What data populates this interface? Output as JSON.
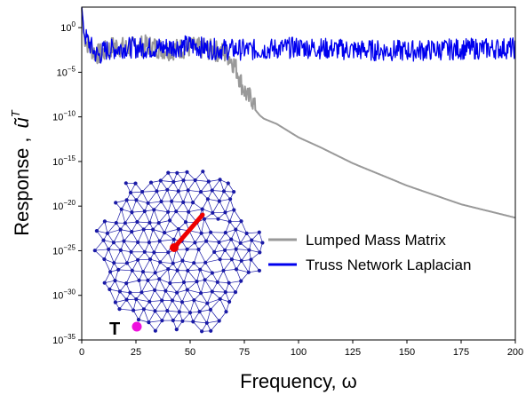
{
  "chart_data": {
    "type": "line",
    "xlabel": "Frequency, ω",
    "ylabel_text": "Response ,",
    "ylabel_symbol": "ũ",
    "ylabel_superscript": "T",
    "xlim": [
      0,
      200
    ],
    "ylim_log10": [
      -35,
      2.3
    ],
    "y_scale": "log",
    "grid": false,
    "x_ticks": [
      0,
      25,
      50,
      75,
      100,
      125,
      150,
      175,
      200
    ],
    "y_ticks": [
      {
        "exp": 0,
        "label": "10",
        "sup": "0"
      },
      {
        "exp": -5,
        "label": "10",
        "sup": "−5"
      },
      {
        "exp": -10,
        "label": "10",
        "sup": "−10"
      },
      {
        "exp": -15,
        "label": "10",
        "sup": "−15"
      },
      {
        "exp": -20,
        "label": "10",
        "sup": "−20"
      },
      {
        "exp": -25,
        "label": "10",
        "sup": "−25"
      },
      {
        "exp": -30,
        "label": "10",
        "sup": "−30"
      },
      {
        "exp": -35,
        "label": "10",
        "sup": "−35"
      }
    ],
    "legend_placement": "center-right",
    "series": [
      {
        "name": "Lumped Mass Matrix",
        "color": "#999999",
        "x": [
          0,
          1,
          2,
          4,
          6,
          8,
          10,
          15,
          20,
          30,
          40,
          50,
          60,
          65,
          68,
          70,
          72,
          73,
          74,
          75,
          76,
          77,
          78,
          79,
          80,
          82,
          84,
          90,
          100,
          110,
          125,
          150,
          175,
          200
        ],
        "log10y": [
          2.2,
          -0.8,
          -1.5,
          -2.2,
          -2.8,
          -3,
          -2.8,
          -2,
          -2.3,
          -2,
          -2.5,
          -2.2,
          -2.5,
          -2.8,
          -3.2,
          -4,
          -5,
          -5.8,
          -6.5,
          -7,
          -7.5,
          -8,
          -7.6,
          -8.3,
          -9.2,
          -9.8,
          -10.2,
          -10.8,
          -12.3,
          -13.4,
          -15.2,
          -17.7,
          -19.8,
          -21.3
        ],
        "noise_until_x": 80
      },
      {
        "name": "Truss Network Laplacian",
        "color": "#0000ee",
        "x": [
          0,
          1,
          2,
          4,
          6,
          8,
          10,
          20,
          30,
          40,
          50,
          60,
          80,
          100,
          125,
          150,
          175,
          200
        ],
        "log10y": [
          2.3,
          -0.3,
          -1.2,
          -2,
          -2.8,
          -3.2,
          -2.6,
          -2.2,
          -2.3,
          -2.2,
          -2.0,
          -2.4,
          -2.5,
          -2.2,
          -2.5,
          -2.6,
          -2.4,
          -2.3
        ],
        "noise_until_x": 200
      }
    ],
    "inset": {
      "annotation_label": "T",
      "network_color": "#1a1aa6",
      "source_color": "#ee0000",
      "target_color": "#ee11dd"
    }
  }
}
